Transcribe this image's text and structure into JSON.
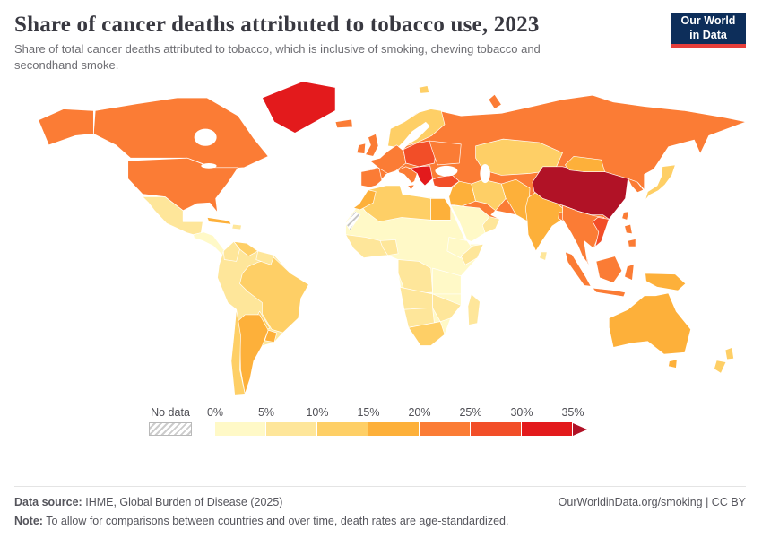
{
  "header": {
    "title": "Share of cancer deaths attributed to tobacco use, 2023",
    "subtitle": "Share of total cancer deaths attributed to tobacco, which is inclusive of smoking, chewing tobacco and secondhand smoke.",
    "logo": {
      "line1": "Our World",
      "line2": "in Data",
      "bg_color": "#0d2e5a",
      "accent_color": "#e63e3a"
    }
  },
  "chart_data": {
    "type": "heatmap",
    "subtype": "choropleth world map",
    "title": "Share of cancer deaths attributed to tobacco use",
    "year": 2023,
    "unit": "%",
    "color_scale": {
      "no_data_label": "No data",
      "ticks": [
        "0%",
        "5%",
        "10%",
        "15%",
        "20%",
        "25%",
        "30%",
        "35%"
      ],
      "thresholds": [
        5,
        10,
        15,
        20,
        25,
        30,
        35
      ],
      "colors": [
        "#fff9c7",
        "#fee69a",
        "#fecf66",
        "#fdb03a",
        "#fb7c35",
        "#f24e28",
        "#e31a1c"
      ],
      "above_color": "#b11226"
    },
    "no_data_regions": [
      "Western Sahara"
    ],
    "regions": [
      {
        "name": "Canada",
        "value": 20
      },
      {
        "name": "United States",
        "value": 21
      },
      {
        "name": "Greenland",
        "value": 32
      },
      {
        "name": "Mexico",
        "value": 8
      },
      {
        "name": "Central America",
        "value": 4
      },
      {
        "name": "Cuba",
        "value": 16
      },
      {
        "name": "Hispaniola",
        "value": 8
      },
      {
        "name": "Colombia",
        "value": 9
      },
      {
        "name": "Venezuela",
        "value": 12
      },
      {
        "name": "Guyanas",
        "value": 9
      },
      {
        "name": "Andean South America",
        "value": 6
      },
      {
        "name": "Brazil",
        "value": 14
      },
      {
        "name": "Paraguay",
        "value": 11
      },
      {
        "name": "Argentina",
        "value": 17
      },
      {
        "name": "Uruguay",
        "value": 18
      },
      {
        "name": "Chile",
        "value": 13
      },
      {
        "name": "Iceland",
        "value": 22
      },
      {
        "name": "United Kingdom",
        "value": 21
      },
      {
        "name": "Ireland",
        "value": 21
      },
      {
        "name": "Scandinavia",
        "value": 12
      },
      {
        "name": "Western Europe",
        "value": 21
      },
      {
        "name": "Iberia",
        "value": 22
      },
      {
        "name": "Eastern Europe",
        "value": 26
      },
      {
        "name": "Ukraine",
        "value": 24
      },
      {
        "name": "Balkans",
        "value": 31
      },
      {
        "name": "Italy",
        "value": 21
      },
      {
        "name": "Turkey",
        "value": 28
      },
      {
        "name": "Russia",
        "value": 21
      },
      {
        "name": "Middle East",
        "value": 17
      },
      {
        "name": "Saudi Arabia",
        "value": 4
      },
      {
        "name": "Oman and Yemen",
        "value": 8
      },
      {
        "name": "Iran",
        "value": 11
      },
      {
        "name": "Afghanistan and Pakistan",
        "value": 15
      },
      {
        "name": "Central Asia",
        "value": 13
      },
      {
        "name": "India",
        "value": 17
      },
      {
        "name": "Bangladesh",
        "value": 22
      },
      {
        "name": "China",
        "value": 36
      },
      {
        "name": "Mongolia",
        "value": 16
      },
      {
        "name": "Korea",
        "value": 21
      },
      {
        "name": "Japan",
        "value": 13
      },
      {
        "name": "Southeast Asia",
        "value": 20
      },
      {
        "name": "Vietnam",
        "value": 27
      },
      {
        "name": "Indonesia",
        "value": 20
      },
      {
        "name": "Philippines",
        "value": 20
      },
      {
        "name": "New Guinea",
        "value": 16
      },
      {
        "name": "Taiwan",
        "value": 21
      },
      {
        "name": "Sri Lanka",
        "value": 8
      },
      {
        "name": "Australia",
        "value": 16
      },
      {
        "name": "New Zealand",
        "value": 13
      },
      {
        "name": "Sub-Saharan Africa",
        "value": 3
      },
      {
        "name": "North Africa",
        "value": 12
      },
      {
        "name": "Morocco",
        "value": 16
      },
      {
        "name": "Egypt",
        "value": 16
      },
      {
        "name": "West Africa",
        "value": 5
      },
      {
        "name": "Nigeria",
        "value": 6
      },
      {
        "name": "Central Africa",
        "value": 7
      },
      {
        "name": "Ethiopia",
        "value": 4
      },
      {
        "name": "Somalia",
        "value": 7
      },
      {
        "name": "East Africa",
        "value": 4
      },
      {
        "name": "Angola and Zambia",
        "value": 6
      },
      {
        "name": "Namibia and Botswana",
        "value": 9
      },
      {
        "name": "South Africa",
        "value": 13
      },
      {
        "name": "Mozambique and Zimbabwe",
        "value": 6
      },
      {
        "name": "Madagascar",
        "value": 9
      },
      {
        "name": "Svalbard",
        "value": 12
      }
    ]
  },
  "footer": {
    "source_label": "Data source:",
    "source_text": "IHME, Global Burden of Disease (2025)",
    "link_text": "OurWorldinData.org/smoking | CC BY",
    "note_label": "Note:",
    "note_text": "To allow for comparisons between countries and over time, death rates are age-standardized."
  }
}
